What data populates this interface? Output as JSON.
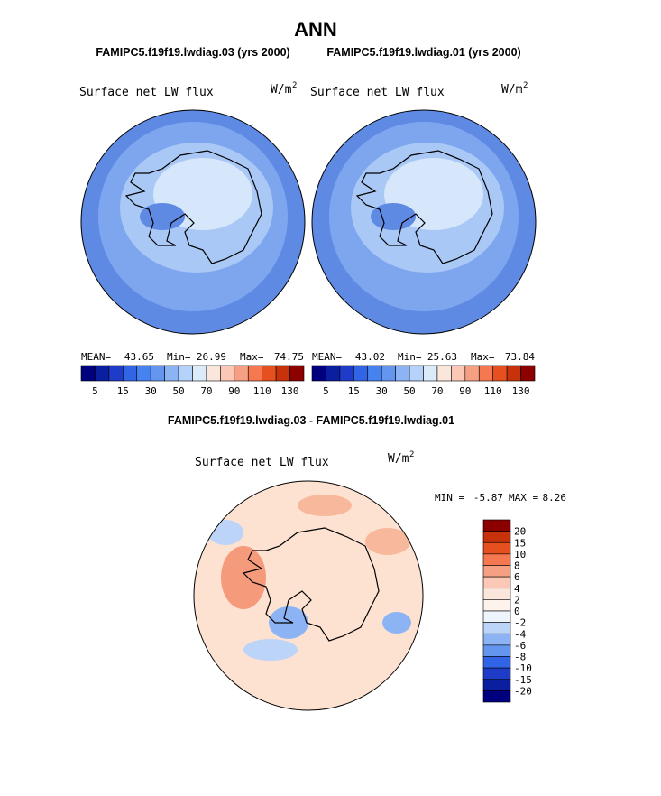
{
  "title": "ANN",
  "panels": [
    {
      "case": "FAMIPC5.f19f19.lwdiag.03 (yrs 2000)",
      "variable": "Surface net LW flux",
      "units": "W/m",
      "units_power": "2",
      "stats": [
        {
          "label": "MEAN=",
          "value": 43.65
        },
        {
          "label": "Min=",
          "value": 26.99
        },
        {
          "label": "Max=",
          "value": 74.75
        }
      ],
      "colorbar": {
        "colors": [
          "#00007f",
          "#0a1ea0",
          "#1e3cc8",
          "#3264e6",
          "#4682f0",
          "#6496f0",
          "#8cb4f5",
          "#b4d2fa",
          "#dcebfa",
          "#fbe6dc",
          "#fac8b4",
          "#f5a082",
          "#f57850",
          "#e6501e",
          "#c8320a",
          "#8c0000"
        ],
        "labels": [
          5,
          15,
          30,
          50,
          70,
          90,
          110,
          130
        ]
      }
    },
    {
      "case": "FAMIPC5.f19f19.lwdiag.01 (yrs 2000)",
      "variable": "Surface net LW flux",
      "units": "W/m",
      "units_power": "2",
      "stats": [
        {
          "label": "MEAN=",
          "value": 43.02
        },
        {
          "label": "Min=",
          "value": 25.63
        },
        {
          "label": "Max=",
          "value": 73.84
        }
      ],
      "colorbar": {
        "colors": [
          "#00007f",
          "#0a1ea0",
          "#1e3cc8",
          "#3264e6",
          "#4682f0",
          "#6496f0",
          "#8cb4f5",
          "#b4d2fa",
          "#dcebfa",
          "#fbe6dc",
          "#fac8b4",
          "#f5a082",
          "#f57850",
          "#e6501e",
          "#c8320a",
          "#8c0000"
        ],
        "labels": [
          5,
          15,
          30,
          50,
          70,
          90,
          110,
          130
        ]
      }
    }
  ],
  "difference": {
    "case": "FAMIPC5.f19f19.lwdiag.03 - FAMIPC5.f19f19.lwdiag.01",
    "variable": "Surface net LW flux",
    "units": "W/m",
    "units_power": "2",
    "stats": [
      {
        "label": "MIN =",
        "value": -5.87
      },
      {
        "label": "MAX =",
        "value": 8.26
      }
    ],
    "colorbar": {
      "colors": [
        "#8c0000",
        "#c8320a",
        "#e6501e",
        "#f57850",
        "#f5a082",
        "#fac8b4",
        "#fbe6dc",
        "#fdf3ec",
        "#eef4fc",
        "#bcd4f7",
        "#8cb4f5",
        "#6496f0",
        "#3264e6",
        "#1e3cc8",
        "#0a1ea0",
        "#00007f"
      ],
      "labels": [
        20,
        15,
        10,
        8,
        6,
        4,
        2,
        0,
        -2,
        -4,
        -6,
        -8,
        -10,
        -15,
        -20
      ]
    }
  }
}
